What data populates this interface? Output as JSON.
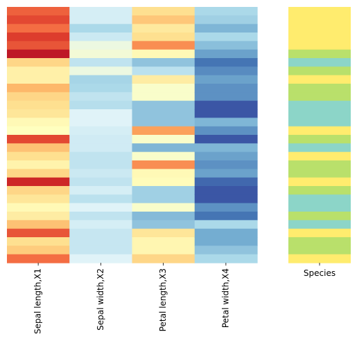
{
  "chart_data": {
    "type": "heatmap",
    "title": "",
    "row_count": 30,
    "columns": [
      {
        "label": "Sepal length,X1",
        "values": [
          0.82,
          0.86,
          0.8,
          0.88,
          0.84,
          0.95,
          0.62,
          0.55,
          0.55,
          0.68,
          0.62,
          0.6,
          0.58,
          0.52,
          0.5,
          0.86,
          0.66,
          0.6,
          0.54,
          0.62,
          0.92,
          0.62,
          0.58,
          0.52,
          0.56,
          0.66,
          0.84,
          0.6,
          0.64,
          0.8
        ]
      },
      {
        "label": "Sepal width,X2",
        "values": [
          0.38,
          0.38,
          0.3,
          0.36,
          0.44,
          0.46,
          0.34,
          0.44,
          0.29,
          0.3,
          0.34,
          0.32,
          0.4,
          0.4,
          0.38,
          0.37,
          0.37,
          0.34,
          0.34,
          0.36,
          0.34,
          0.38,
          0.33,
          0.4,
          0.34,
          0.38,
          0.35,
          0.35,
          0.35,
          0.4
        ]
      },
      {
        "label": "Petal length,X3",
        "values": [
          0.6,
          0.65,
          0.57,
          0.6,
          0.75,
          0.52,
          0.25,
          0.33,
          0.56,
          0.48,
          0.48,
          0.25,
          0.25,
          0.25,
          0.72,
          0.48,
          0.22,
          0.48,
          0.75,
          0.52,
          0.51,
          0.28,
          0.28,
          0.48,
          0.23,
          0.25,
          0.58,
          0.53,
          0.53,
          0.62
        ]
      },
      {
        "label": "Petal width,X4",
        "values": [
          0.3,
          0.28,
          0.22,
          0.3,
          0.24,
          0.18,
          0.1,
          0.14,
          0.18,
          0.15,
          0.15,
          0.05,
          0.05,
          0.22,
          0.15,
          0.05,
          0.22,
          0.18,
          0.15,
          0.18,
          0.08,
          0.05,
          0.05,
          0.15,
          0.1,
          0.3,
          0.2,
          0.2,
          0.25,
          0.3
        ]
      }
    ],
    "side_column": {
      "label": "Species",
      "values": [
        "A",
        "A",
        "A",
        "A",
        "A",
        "B",
        "C",
        "B",
        "A",
        "B",
        "B",
        "C",
        "C",
        "C",
        "A",
        "B",
        "C",
        "A",
        "B",
        "B",
        "A",
        "B",
        "C",
        "C",
        "B",
        "C",
        "A",
        "B",
        "B",
        "A"
      ],
      "colors": {
        "A": "#ffec6e",
        "B": "#b9e06b",
        "C": "#8cd5c8"
      }
    },
    "colormap": {
      "name": "RdYlBu_r",
      "stops": [
        "#313695",
        "#4575b4",
        "#74add1",
        "#abd9e9",
        "#e0f3f8",
        "#ffffbf",
        "#fee090",
        "#fdae61",
        "#f46d43",
        "#d73027",
        "#a50026"
      ]
    },
    "legend": "none",
    "grid": false
  }
}
